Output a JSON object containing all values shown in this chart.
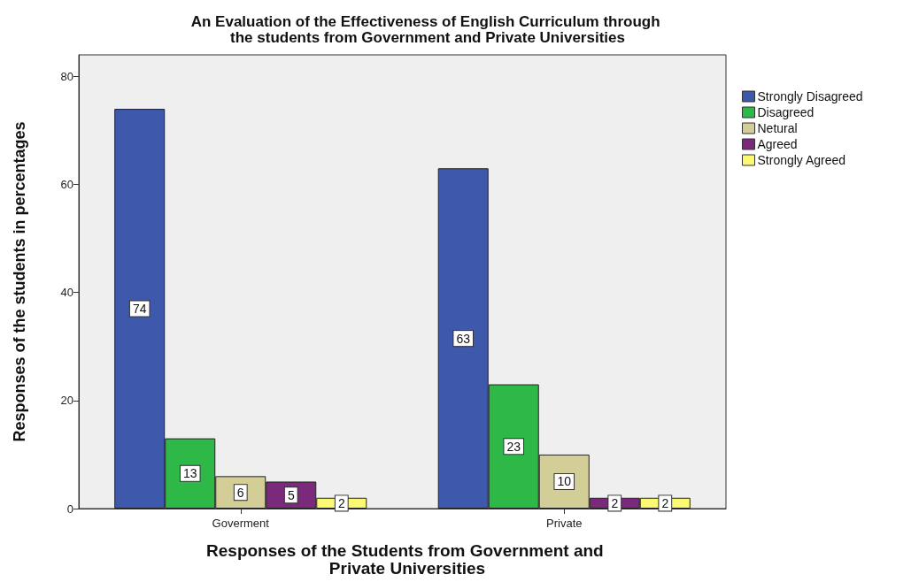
{
  "chart_data": {
    "type": "bar",
    "title": "An Evaluation of the Effectiveness of English Curriculum through the students from Government and Private Universities",
    "xlabel": "Responses of the Students from Government and Private Universities",
    "ylabel": "Responses of the students in percentages",
    "categories": [
      "Goverment",
      "Private"
    ],
    "series": [
      {
        "name": "Strongly Disagreed",
        "color": "#3e58ac",
        "values": [
          74,
          63
        ]
      },
      {
        "name": "Disagreed",
        "color": "#2eb848",
        "values": [
          13,
          23
        ]
      },
      {
        "name": "Netural",
        "color": "#d3ce97",
        "values": [
          6,
          10
        ]
      },
      {
        "name": "Agreed",
        "color": "#7b2a7b",
        "values": [
          5,
          2
        ]
      },
      {
        "name": "Strongly Agreed",
        "color": "#fbf873",
        "values": [
          2,
          2
        ]
      }
    ],
    "ylim": [
      0,
      84
    ],
    "yticks": [
      0,
      20,
      40,
      60,
      80
    ],
    "data_labels": true,
    "legend": "top right"
  }
}
